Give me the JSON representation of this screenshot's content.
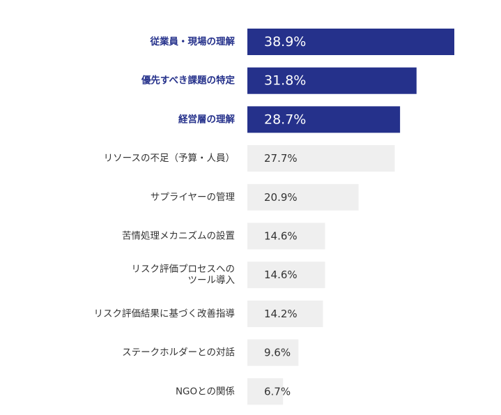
{
  "chart_data": {
    "type": "bar",
    "orientation": "horizontal",
    "categories": [
      "従業員・現場の理解",
      "優先すべき課題の特定",
      "経営層の理解",
      "リソースの不足（予算・人員）",
      "サプライヤーの管理",
      "苦情処理メカニズムの設置",
      "リスク評価プロセスへの\nツール導入",
      "リスク評価結果に基づく改善指導",
      "ステークホルダーとの対話",
      "NGOとの関係"
    ],
    "values": [
      38.9,
      31.8,
      28.7,
      27.7,
      20.9,
      14.6,
      14.6,
      14.2,
      9.6,
      6.7
    ],
    "value_labels": [
      "38.9%",
      "31.8%",
      "28.7%",
      "27.7%",
      "20.9%",
      "14.6%",
      "14.6%",
      "14.2%",
      "9.6%",
      "6.7%"
    ],
    "highlighted": [
      true,
      true,
      true,
      false,
      false,
      false,
      false,
      false,
      false,
      false
    ],
    "title": "",
    "xlabel": "",
    "ylabel": "",
    "xlim": [
      0,
      38.9
    ],
    "grid": false,
    "legend": "none",
    "colors": {
      "highlight_bar": "#25318b",
      "normal_bar": "#efefef",
      "highlight_text": "#25318b",
      "normal_text": "#333333",
      "highlight_value_text": "#ffffff"
    }
  }
}
